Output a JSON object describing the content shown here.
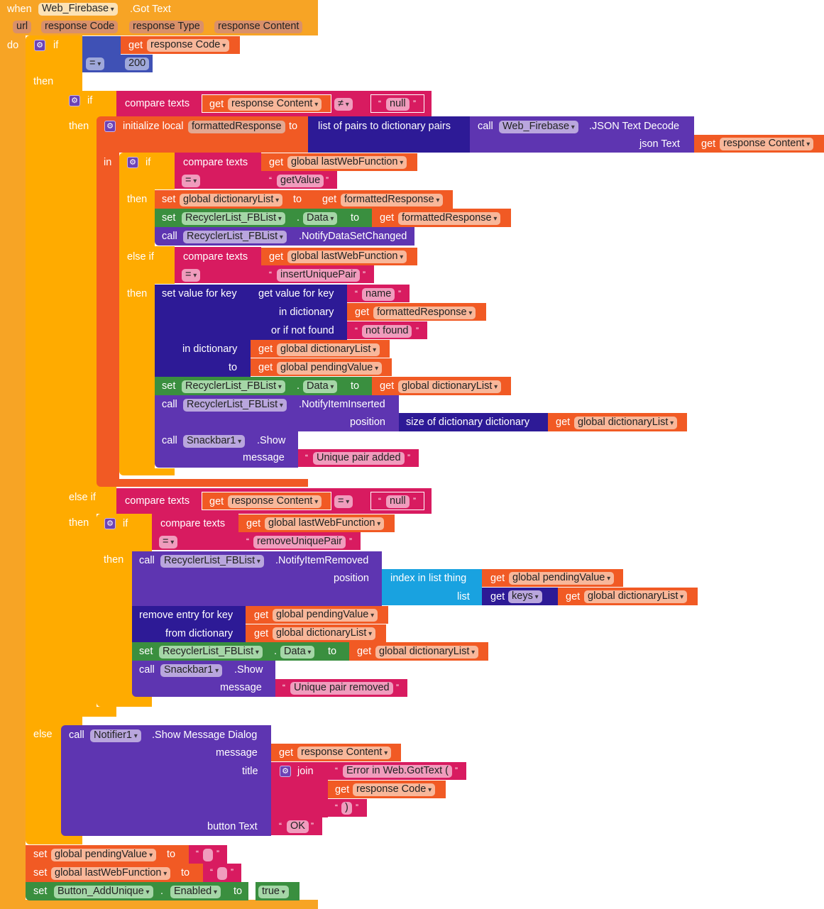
{
  "event": {
    "when": "when",
    "component": "Web_Firebase",
    "event_name": ".Got Text",
    "params": [
      "url",
      "response Code",
      "response Type",
      "response Content"
    ],
    "do": "do"
  },
  "labels": {
    "if": "if",
    "then": "then",
    "else_if": "else if",
    "else": "else",
    "in": "in",
    "get": "get",
    "set": "set",
    "call": "call",
    "to": "to",
    "dot": ".",
    "compare_texts": "compare texts",
    "initialize_local": "initialize local",
    "list_of_pairs": "list of pairs to dictionary  pairs",
    "json_decode": ".JSON Text Decode",
    "json_text": "json Text",
    "set_value_for_key": "set value for key",
    "get_value_for_key": "get value for key",
    "in_dictionary": "in dictionary",
    "or_if_not_found": "or if not found",
    "notify_data_set_changed": ".NotifyDataSetChanged",
    "notify_item_inserted": ".NotifyItemInserted",
    "notify_item_removed": ".NotifyItemRemoved",
    "position": "position",
    "size_of_dictionary": "size of dictionary  dictionary",
    "show": ".Show",
    "message": "message",
    "index_in_list": "index in list  thing",
    "list": "list",
    "remove_entry": "remove entry for key",
    "from_dictionary": "from dictionary",
    "show_message_dialog": ".Show Message Dialog",
    "title": "title",
    "join": "join",
    "button_text": "button Text"
  },
  "vars": {
    "response_code": "response Code",
    "response_content": "response Content",
    "formatted_response": "formattedResponse",
    "last_web_function": "global lastWebFunction",
    "dictionary_list": "global dictionaryList",
    "pending_value": "global pendingValue",
    "keys": "keys"
  },
  "ops": {
    "eq": "=",
    "neq": "≠"
  },
  "components": {
    "web": "Web_Firebase",
    "recycler": "RecyclerList_FBList",
    "snackbar": "Snackbar1",
    "notifier": "Notifier1",
    "button": "Button_AddUnique",
    "data_prop": "Data",
    "enabled_prop": "Enabled"
  },
  "literals": {
    "code_200": "200",
    "null": "null",
    "get_value": "getValue",
    "insert_unique_pair": "insertUniquePair",
    "name": "name",
    "not_found": "not found",
    "unique_pair_added": "Unique pair added",
    "remove_unique_pair": "removeUniquePair",
    "unique_pair_removed": "Unique pair removed",
    "error_title": "Error in Web.GotText (",
    "close_paren": ")",
    "ok": "OK",
    "empty": "",
    "true": "true",
    "open_quote": "“",
    "close_quote": "”"
  },
  "colors": {
    "event": "#f7a425",
    "control": "#ffab00",
    "variable": "#f15a24",
    "text": "#d81b60",
    "math": "#3f51b5",
    "dictionary": "#2d1a96",
    "component_method": "#5e35b1",
    "component_property": "#3a8f3f",
    "list": "#19a2e0"
  }
}
